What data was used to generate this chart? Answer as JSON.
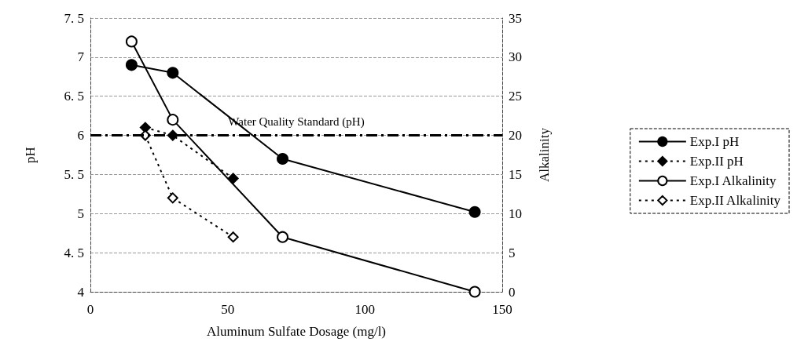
{
  "chart_data": {
    "type": "line",
    "xlabel": "Aluminum Sulfate Dosage (mg/l)",
    "ylabel": "pH",
    "y2label": "Alkalinity",
    "xlim": [
      0,
      150
    ],
    "xticks": [
      0,
      50,
      100,
      150
    ],
    "ylim": [
      4,
      7.5
    ],
    "yticks": [
      {
        "value": 4,
        "label": "4"
      },
      {
        "value": 4.5,
        "label": "4. 5"
      },
      {
        "value": 5,
        "label": "5"
      },
      {
        "value": 5.5,
        "label": "5. 5"
      },
      {
        "value": 6,
        "label": "6"
      },
      {
        "value": 6.5,
        "label": "6. 5"
      },
      {
        "value": 7,
        "label": "7"
      },
      {
        "value": 7.5,
        "label": "7. 5"
      }
    ],
    "y2lim": [
      0,
      35
    ],
    "y2ticks": [
      0,
      5,
      10,
      15,
      20,
      25,
      30,
      35
    ],
    "grid": "y",
    "legend": "right",
    "series": [
      {
        "name": "Exp.I pH",
        "color": "#000000",
        "x": [
          15,
          30,
          70,
          140
        ],
        "values": [
          6.9,
          6.8,
          5.7,
          5.02
        ],
        "marker": "circle",
        "line_style": "solid"
      },
      {
        "name": "Exp.II pH",
        "color": "#000000",
        "x": [
          20,
          30,
          52
        ],
        "values": [
          6.1,
          6.0,
          5.45
        ],
        "marker": "diamond",
        "line_style": "dotted"
      },
      {
        "name": "Exp.I Alkalinity",
        "color": "#000000",
        "x": [
          15,
          30,
          70,
          140
        ],
        "values": [
          32,
          22,
          7,
          0
        ],
        "marker": "circle",
        "line_style": "solid",
        "axis": "y2"
      },
      {
        "name": "Exp.II Alkalinity",
        "color": "#000000",
        "x": [
          20,
          30,
          52
        ],
        "values": [
          20,
          12,
          7
        ],
        "marker": "diamond",
        "line_style": "dotted",
        "axis": "y2"
      }
    ],
    "ref_lines": [
      {
        "axis": "y",
        "value": 6,
        "label": "Water Quality Standard (pH)",
        "color": "#000000",
        "line_style": "dashdot"
      }
    ]
  }
}
